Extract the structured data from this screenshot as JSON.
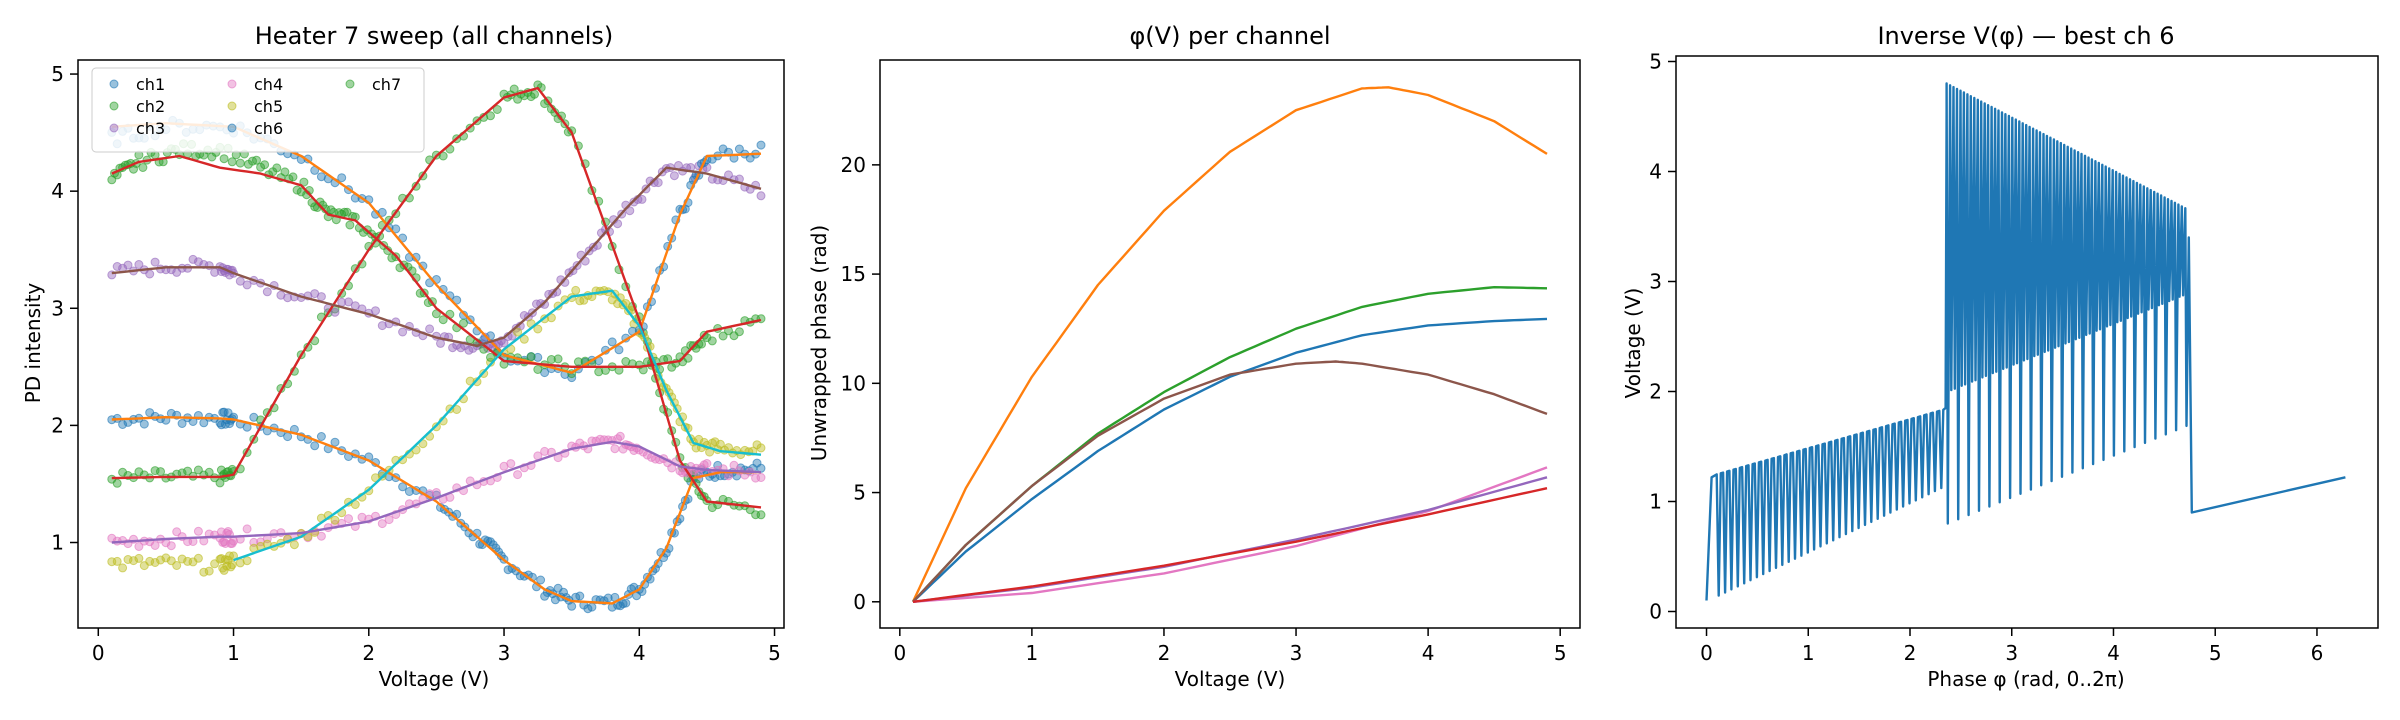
{
  "colors": {
    "ch1": "#1f77b4",
    "ch2": "#2ca02c",
    "ch3": "#9467bd",
    "ch4": "#e377c2",
    "ch5": "#bcbd22",
    "ch6": "#1f77b4",
    "ch7": "#2ca02c",
    "fit_orange": "#ff7f0e",
    "fit_red": "#d62728",
    "fit_brown": "#8c564b",
    "fit_teal": "#17becf",
    "fit_purple": "#9467bd",
    "fit_pink": "#e377c2",
    "fit_green": "#2ca02c",
    "fit_blue": "#1f77b4"
  },
  "chart_data": [
    {
      "type": "scatter",
      "title": "Heater 7 sweep (all channels)",
      "xlabel": "Voltage (V)",
      "ylabel": "PD intensity",
      "xlim": [
        -0.15,
        5.07
      ],
      "ylim": [
        0.27,
        5.12
      ],
      "xticks": [
        0,
        1,
        2,
        3,
        4,
        5
      ],
      "yticks": [
        1,
        2,
        3,
        4,
        5
      ],
      "legend": {
        "placement": "upper-left",
        "ncol": 3,
        "entries": [
          "ch1",
          "ch2",
          "ch3",
          "ch4",
          "ch5",
          "ch6",
          "ch7"
        ]
      },
      "series": [
        {
          "name": "ch1",
          "color_key": "ch1",
          "x": [
            0.1,
            0.5,
            0.9,
            1.0,
            1.5,
            2.0,
            2.5,
            2.8,
            3.0,
            3.3,
            3.5,
            3.8,
            4.0,
            4.2,
            4.4,
            4.6,
            4.9
          ],
          "y": [
            2.05,
            2.07,
            2.06,
            2.05,
            1.92,
            1.7,
            1.35,
            1.05,
            0.85,
            0.6,
            0.5,
            0.48,
            0.6,
            0.95,
            1.55,
            1.62,
            1.63
          ]
        },
        {
          "name": "ch2",
          "color_key": "ch2",
          "x": [
            0.1,
            0.5,
            0.9,
            1.0,
            1.5,
            2.0,
            2.5,
            3.0,
            3.25,
            3.5,
            4.0,
            4.3,
            4.5,
            4.9
          ],
          "y": [
            1.55,
            1.56,
            1.56,
            1.58,
            2.6,
            3.5,
            4.3,
            4.8,
            4.88,
            4.5,
            2.9,
            1.7,
            1.35,
            1.28
          ]
        },
        {
          "name": "ch3",
          "color_key": "ch3",
          "x": [
            0.1,
            0.5,
            0.9,
            1.0,
            1.5,
            2.0,
            2.5,
            2.8,
            3.0,
            3.3,
            3.6,
            3.9,
            4.2,
            4.5,
            4.9
          ],
          "y": [
            3.3,
            3.36,
            3.36,
            3.3,
            3.1,
            2.95,
            2.75,
            2.68,
            2.75,
            3.05,
            3.45,
            3.85,
            4.2,
            4.15,
            4.0
          ]
        },
        {
          "name": "ch4",
          "color_key": "ch4",
          "x": [
            0.1,
            0.5,
            0.9,
            1.0,
            1.5,
            2.0,
            2.5,
            3.0,
            3.5,
            3.8,
            4.0,
            4.3,
            4.5,
            4.9
          ],
          "y": [
            1.0,
            1.03,
            1.05,
            1.05,
            1.08,
            1.18,
            1.38,
            1.6,
            1.8,
            1.86,
            1.82,
            1.65,
            1.62,
            1.6
          ]
        },
        {
          "name": "ch5",
          "color_key": "ch5",
          "x": [
            0.1,
            0.5,
            0.9,
            1.0,
            1.5,
            2.0,
            2.5,
            3.0,
            3.5,
            3.8,
            4.0,
            4.2,
            4.4,
            4.6,
            4.9
          ],
          "y": [
            0.82,
            0.82,
            0.8,
            0.85,
            1.05,
            1.45,
            2.0,
            2.65,
            3.1,
            3.12,
            2.85,
            2.3,
            1.85,
            1.8,
            1.78
          ]
        },
        {
          "name": "ch6",
          "color_key": "ch6",
          "x": [
            0.1,
            0.5,
            1.0,
            1.5,
            2.0,
            2.5,
            3.0,
            3.5,
            4.0,
            4.3,
            4.5,
            4.9
          ],
          "y": [
            4.45,
            4.55,
            4.55,
            4.3,
            3.9,
            3.2,
            2.6,
            2.45,
            2.8,
            3.8,
            4.3,
            4.35
          ]
        },
        {
          "name": "ch7",
          "color_key": "ch7",
          "x": [
            0.1,
            0.3,
            0.6,
            0.9,
            1.2,
            1.5,
            1.7,
            1.9,
            2.2,
            2.5,
            3.0,
            3.5,
            4.0,
            4.3,
            4.5,
            4.9
          ],
          "y": [
            4.1,
            4.25,
            4.35,
            4.35,
            4.2,
            4.05,
            3.8,
            3.75,
            3.45,
            3.0,
            2.55,
            2.5,
            2.5,
            2.55,
            2.75,
            2.9
          ]
        }
      ],
      "fits": [
        {
          "color_key": "fit_orange",
          "x": [
            0.1,
            0.5,
            1.0,
            1.5,
            2.0,
            2.5,
            3.0,
            3.5,
            4.0,
            4.3,
            4.5,
            4.9
          ],
          "y": [
            4.55,
            4.58,
            4.55,
            4.3,
            3.9,
            3.2,
            2.6,
            2.45,
            2.8,
            3.8,
            4.3,
            4.32
          ]
        },
        {
          "color_key": "fit_orange",
          "x": [
            0.1,
            0.5,
            0.9,
            1.0,
            1.5,
            2.0,
            2.5,
            2.8,
            3.0,
            3.3,
            3.5,
            3.8,
            4.0,
            4.2,
            4.4,
            4.6,
            4.9
          ],
          "y": [
            2.05,
            2.07,
            2.06,
            2.05,
            1.92,
            1.7,
            1.35,
            1.05,
            0.85,
            0.6,
            0.5,
            0.48,
            0.6,
            0.95,
            1.55,
            1.6,
            1.6
          ]
        },
        {
          "color_key": "fit_red",
          "x": [
            0.1,
            0.5,
            0.9,
            1.0,
            1.5,
            2.0,
            2.5,
            3.0,
            3.25,
            3.5,
            4.0,
            4.3,
            4.5,
            4.9
          ],
          "y": [
            1.55,
            1.56,
            1.56,
            1.58,
            2.6,
            3.5,
            4.3,
            4.8,
            4.88,
            4.5,
            2.9,
            1.7,
            1.35,
            1.3
          ]
        },
        {
          "color_key": "fit_red",
          "x": [
            0.1,
            0.3,
            0.6,
            0.9,
            1.2,
            1.5,
            1.7,
            1.9,
            2.2,
            2.5,
            3.0,
            3.5,
            4.0,
            4.3,
            4.5,
            4.9
          ],
          "y": [
            4.15,
            4.25,
            4.3,
            4.2,
            4.15,
            4.05,
            3.8,
            3.75,
            3.45,
            3.0,
            2.55,
            2.5,
            2.5,
            2.55,
            2.8,
            2.9
          ]
        },
        {
          "color_key": "fit_brown",
          "x": [
            0.1,
            0.5,
            0.9,
            1.0,
            1.5,
            2.0,
            2.5,
            2.8,
            3.0,
            3.3,
            3.6,
            3.9,
            4.2,
            4.5,
            4.9
          ],
          "y": [
            3.3,
            3.35,
            3.35,
            3.3,
            3.1,
            2.95,
            2.75,
            2.68,
            2.75,
            3.05,
            3.45,
            3.85,
            4.2,
            4.15,
            4.02
          ]
        },
        {
          "color_key": "fit_teal",
          "x": [
            1.0,
            1.5,
            2.0,
            2.5,
            3.0,
            3.5,
            3.8,
            4.0,
            4.2,
            4.4,
            4.6,
            4.9
          ],
          "y": [
            0.85,
            1.05,
            1.45,
            2.0,
            2.65,
            3.1,
            3.15,
            2.85,
            2.3,
            1.85,
            1.78,
            1.75
          ]
        },
        {
          "color_key": "fit_purple",
          "x": [
            0.1,
            0.5,
            0.9,
            1.0,
            1.5,
            2.0,
            2.5,
            3.0,
            3.5,
            3.8,
            4.0,
            4.3,
            4.5,
            4.9
          ],
          "y": [
            1.0,
            1.03,
            1.05,
            1.05,
            1.08,
            1.18,
            1.38,
            1.6,
            1.8,
            1.86,
            1.82,
            1.65,
            1.62,
            1.6
          ]
        }
      ]
    },
    {
      "type": "line",
      "title": "φ(V) per channel",
      "xlabel": "Voltage (V)",
      "ylabel": "Unwrapped phase (rad)",
      "xlim": [
        -0.15,
        5.15
      ],
      "ylim": [
        -1.2,
        24.8
      ],
      "xticks": [
        0,
        1,
        2,
        3,
        4,
        5
      ],
      "yticks": [
        0,
        5,
        10,
        15,
        20
      ],
      "series": [
        {
          "color_key": "fit_orange",
          "x": [
            0.1,
            0.5,
            1.0,
            1.5,
            2.0,
            2.5,
            3.0,
            3.5,
            3.7,
            4.0,
            4.5,
            4.9
          ],
          "y": [
            0,
            5.2,
            10.3,
            14.5,
            17.9,
            20.6,
            22.5,
            23.5,
            23.55,
            23.2,
            22.0,
            20.5
          ]
        },
        {
          "color_key": "fit_green",
          "x": [
            0.1,
            0.5,
            1.0,
            1.5,
            2.0,
            2.5,
            3.0,
            3.5,
            4.0,
            4.5,
            4.9
          ],
          "y": [
            0,
            2.6,
            5.3,
            7.7,
            9.6,
            11.2,
            12.5,
            13.5,
            14.1,
            14.4,
            14.35
          ]
        },
        {
          "color_key": "fit_blue",
          "x": [
            0.1,
            0.5,
            1.0,
            1.5,
            2.0,
            2.5,
            3.0,
            3.5,
            4.0,
            4.5,
            4.9
          ],
          "y": [
            0,
            2.3,
            4.7,
            6.9,
            8.8,
            10.3,
            11.4,
            12.2,
            12.65,
            12.85,
            12.95
          ]
        },
        {
          "color_key": "fit_brown",
          "x": [
            0.1,
            0.5,
            1.0,
            1.5,
            2.0,
            2.5,
            3.0,
            3.3,
            3.5,
            4.0,
            4.5,
            4.9
          ],
          "y": [
            0,
            2.6,
            5.3,
            7.6,
            9.3,
            10.4,
            10.9,
            11.0,
            10.9,
            10.4,
            9.5,
            8.6
          ]
        },
        {
          "color_key": "fit_pink",
          "x": [
            0.1,
            1.0,
            2.0,
            3.0,
            4.0,
            4.9
          ],
          "y": [
            0,
            0.4,
            1.3,
            2.55,
            4.15,
            6.15
          ]
        },
        {
          "color_key": "fit_purple",
          "x": [
            0.1,
            1.0,
            2.0,
            3.0,
            4.0,
            4.9
          ],
          "y": [
            0,
            0.65,
            1.6,
            2.85,
            4.2,
            5.7
          ]
        },
        {
          "color_key": "fit_red",
          "x": [
            0.1,
            1.0,
            2.0,
            3.0,
            4.0,
            4.9
          ],
          "y": [
            0,
            0.7,
            1.65,
            2.75,
            4.0,
            5.2
          ]
        }
      ]
    },
    {
      "type": "line",
      "title": "Inverse V(φ) — best ch 6",
      "xlabel": "Phase φ (rad, 0..2π)",
      "ylabel": "Voltage (V)",
      "xlim": [
        -0.3,
        6.6
      ],
      "ylim": [
        -0.15,
        5.05
      ],
      "xticks": [
        0,
        1,
        2,
        3,
        4,
        5,
        6
      ],
      "yticks": [
        0,
        1,
        2,
        3,
        4,
        5
      ],
      "series": [
        {
          "color_key": "fit_blue",
          "segments": {
            "lower_start": [
              0.0,
              0.1
            ],
            "lower_break": [
              2.35,
              1.85
            ],
            "upper_band_x": [
              2.35,
              4.75
            ],
            "upper_peak": [
              4.8,
              3.6
            ],
            "drop_to": [
              4.77,
              0.9
            ],
            "end": [
              6.28,
              1.22
            ],
            "teeth": 60
          }
        }
      ]
    }
  ]
}
